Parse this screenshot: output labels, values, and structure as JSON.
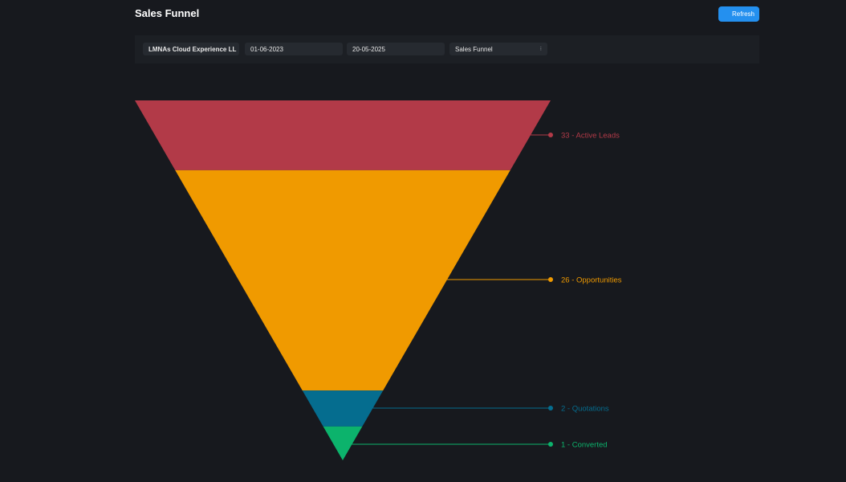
{
  "page": {
    "title": "Sales Funnel"
  },
  "toolbar": {
    "refresh_label": "Refresh"
  },
  "filters": {
    "company": "LMNAs Cloud Experience LL",
    "from_date": "01-06-2023",
    "to_date": "20-05-2025",
    "report": "Sales Funnel"
  },
  "funnel": {
    "stages": [
      {
        "label": "33 - Active Leads",
        "value": 33,
        "color": "#b23a48"
      },
      {
        "label": "26 - Opportunities",
        "value": 26,
        "color": "#f09a00"
      },
      {
        "label": "2 - Quotations",
        "value": 2,
        "color": "#056d8f"
      },
      {
        "label": "1 - Converted",
        "value": 1,
        "color": "#0cb36c"
      }
    ]
  },
  "icons": {
    "select_chevron": "chevron-updown-icon"
  }
}
